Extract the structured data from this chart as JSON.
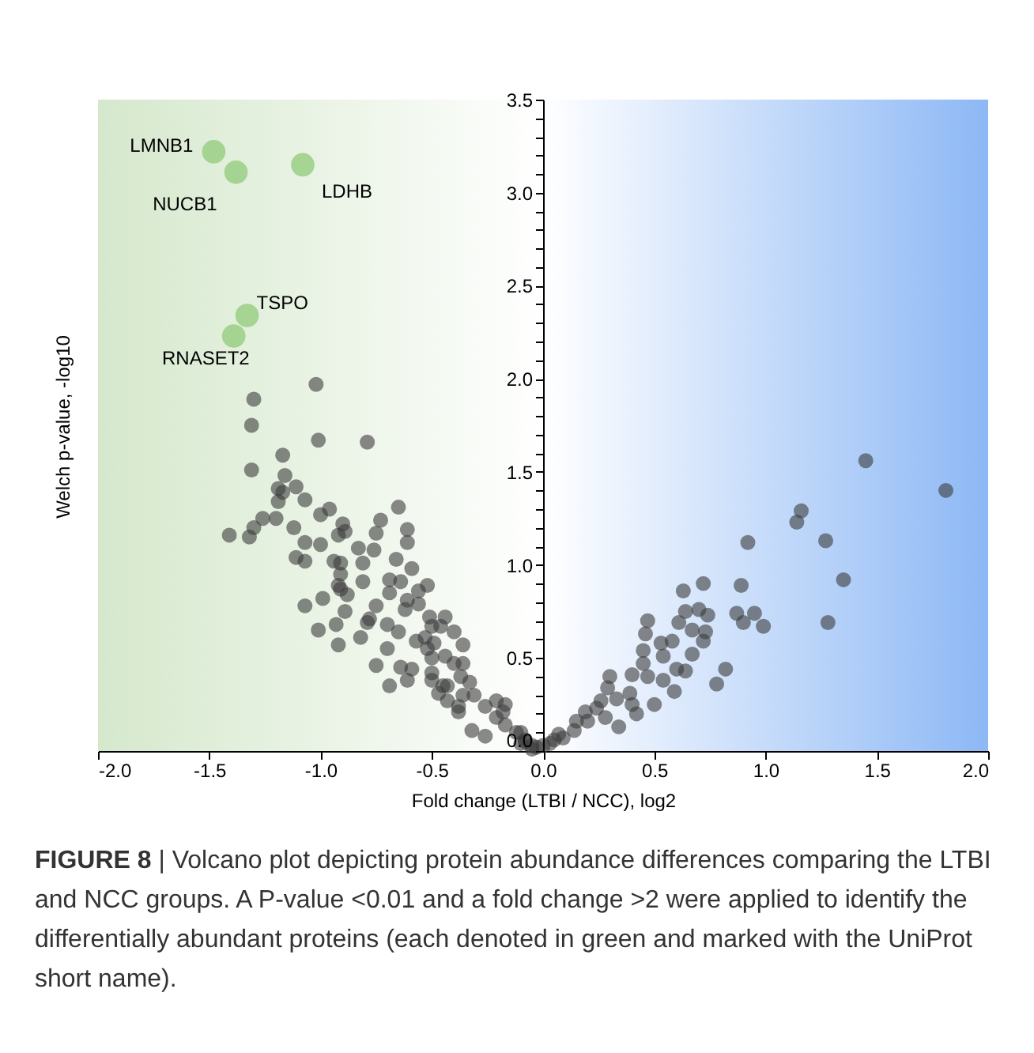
{
  "chart_data": {
    "type": "scatter",
    "xlabel": "Fold change (LTBI / NCC), log2",
    "ylabel": "Welch p-value, -log10",
    "xlim": [
      -2,
      2
    ],
    "ylim": [
      0,
      3.5
    ],
    "xticks": [
      {
        "value": -2,
        "label": "-2.0"
      },
      {
        "value": -1.5,
        "label": "-1.5"
      },
      {
        "value": -1,
        "label": "-1.0"
      },
      {
        "value": -0.5,
        "label": "-0.5"
      },
      {
        "value": 0,
        "label": "0.0"
      },
      {
        "value": 0.5,
        "label": "0.5"
      },
      {
        "value": 1,
        "label": "1.0"
      },
      {
        "value": 1.5,
        "label": "1.5"
      },
      {
        "value": 2,
        "label": "2.0"
      }
    ],
    "yticks": [
      {
        "value": 0,
        "label": "0.0"
      },
      {
        "value": 0.1,
        "label": null
      },
      {
        "value": 0.2,
        "label": null
      },
      {
        "value": 0.3,
        "label": null
      },
      {
        "value": 0.4,
        "label": null
      },
      {
        "value": 0.5,
        "label": "0.5"
      },
      {
        "value": 0.6,
        "label": null
      },
      {
        "value": 0.7,
        "label": null
      },
      {
        "value": 0.8,
        "label": null
      },
      {
        "value": 0.9,
        "label": null
      },
      {
        "value": 1,
        "label": "1.0"
      },
      {
        "value": 1.1,
        "label": null
      },
      {
        "value": 1.2,
        "label": null
      },
      {
        "value": 1.3,
        "label": null
      },
      {
        "value": 1.4,
        "label": null
      },
      {
        "value": 1.5,
        "label": "1.5"
      },
      {
        "value": 1.6,
        "label": null
      },
      {
        "value": 1.7,
        "label": null
      },
      {
        "value": 1.8,
        "label": null
      },
      {
        "value": 1.9,
        "label": null
      },
      {
        "value": 2,
        "label": "2.0"
      },
      {
        "value": 2.1,
        "label": null
      },
      {
        "value": 2.2,
        "label": null
      },
      {
        "value": 2.3,
        "label": null
      },
      {
        "value": 2.4,
        "label": null
      },
      {
        "value": 2.5,
        "label": "2.5"
      },
      {
        "value": 2.6,
        "label": null
      },
      {
        "value": 2.7,
        "label": null
      },
      {
        "value": 2.8,
        "label": null
      },
      {
        "value": 2.9,
        "label": null
      },
      {
        "value": 3,
        "label": "3.0"
      },
      {
        "value": 3.1,
        "label": null
      },
      {
        "value": 3.2,
        "label": null
      },
      {
        "value": 3.3,
        "label": null
      },
      {
        "value": 3.4,
        "label": null
      },
      {
        "value": 3.5,
        "label": "3.5"
      }
    ],
    "grid": false,
    "marker": "circle",
    "bands": [
      {
        "axis": "x",
        "from": -2,
        "to": 0,
        "color": "#d5e8cc"
      },
      {
        "axis": "x",
        "from": 0,
        "to": 2,
        "color": "#8db8f5"
      }
    ],
    "series": [
      {
        "color": "#3c3c3c",
        "x": [
          -1.02,
          -1.3,
          -1.31,
          -1.01,
          -0.79,
          -1.17,
          -1.31,
          -1.16,
          -1.11,
          -1.19,
          -1.17,
          -1.19,
          -1.07,
          -1.26,
          -1.2,
          -1.3,
          -1.41,
          -1.32,
          -1.0,
          -0.96,
          -0.65,
          -0.73,
          -0.9,
          -1.12,
          -0.89,
          -0.75,
          -0.61,
          -0.61,
          -1.07,
          -1.0,
          -0.92,
          -0.83,
          -0.76,
          -1.11,
          -1.07,
          -0.94,
          -0.91,
          -0.81,
          -0.66,
          -0.91,
          -0.59,
          -0.81,
          -0.69,
          -0.64,
          -0.91,
          -0.88,
          -0.69,
          -0.56,
          -0.99,
          -0.75,
          -0.62,
          -1.07,
          -0.89,
          -0.93,
          -1.01,
          -0.79,
          -0.7,
          -0.65,
          -0.57,
          -0.5,
          -0.44,
          -0.92,
          -0.82,
          -0.75,
          -0.69,
          -0.64,
          -0.59,
          -0.61,
          -0.5,
          -0.5,
          -0.47,
          -0.43,
          -0.36,
          -0.36,
          -0.38,
          -0.32,
          -0.52,
          -0.52,
          -0.61,
          -0.56,
          -0.51,
          -0.46,
          -0.4,
          -0.53,
          -0.49,
          -0.36,
          -0.44,
          -0.7,
          -0.5,
          -0.4,
          -0.37,
          -0.45,
          -0.33,
          -0.43,
          -0.38,
          -0.31,
          -0.26,
          -0.21,
          -0.18,
          -0.17,
          -0.12,
          -0.26,
          -0.08,
          -0.05,
          -0.78,
          -0.92,
          -0.21,
          -0.17,
          0.92,
          0.63,
          0.72,
          0.89,
          0.64,
          0.7,
          0.74,
          0.87,
          0.9,
          0.95,
          0.61,
          0.47,
          0.46,
          0.67,
          0.73,
          0.53,
          0.58,
          0.72,
          0.54,
          0.67,
          0.45,
          0.45,
          0.4,
          0.47,
          0.6,
          0.64,
          0.82,
          0.78,
          0.54,
          0.59,
          0.3,
          0.29,
          0.33,
          0.39,
          0.5,
          0.4,
          0.42,
          0.26,
          0.24,
          0.28,
          0.34,
          0.19,
          0.2,
          0.15,
          0.14,
          0.09,
          0.05,
          0.0,
          -0.05,
          -0.1,
          -0.1,
          1.45,
          1.81,
          1.16,
          1.14,
          1.27,
          1.35,
          0.99,
          1.28,
          -0.03,
          0.03,
          -0.08,
          0.07
        ],
        "values": [
          1.97,
          1.89,
          1.75,
          1.67,
          1.66,
          1.59,
          1.51,
          1.48,
          1.42,
          1.41,
          1.39,
          1.34,
          1.35,
          1.25,
          1.25,
          1.2,
          1.16,
          1.15,
          1.27,
          1.3,
          1.31,
          1.24,
          1.22,
          1.2,
          1.18,
          1.17,
          1.19,
          1.12,
          1.12,
          1.11,
          1.16,
          1.09,
          1.08,
          1.04,
          1.02,
          1.02,
          1.01,
          1.01,
          1.03,
          0.95,
          0.98,
          0.91,
          0.92,
          0.91,
          0.87,
          0.84,
          0.85,
          0.86,
          0.82,
          0.78,
          0.76,
          0.78,
          0.75,
          0.68,
          0.65,
          0.69,
          0.68,
          0.64,
          0.59,
          0.67,
          0.72,
          0.57,
          0.61,
          0.46,
          0.35,
          0.45,
          0.44,
          0.38,
          0.5,
          0.38,
          0.31,
          0.35,
          0.47,
          0.3,
          0.21,
          0.11,
          0.55,
          0.89,
          0.81,
          0.79,
          0.72,
          0.67,
          0.64,
          0.61,
          0.58,
          0.57,
          0.51,
          0.55,
          0.42,
          0.47,
          0.4,
          0.35,
          0.37,
          0.27,
          0.24,
          0.3,
          0.24,
          0.18,
          0.21,
          0.14,
          0.1,
          0.08,
          0.06,
          0.03,
          0.71,
          0.89,
          0.27,
          0.25,
          1.12,
          0.86,
          0.9,
          0.89,
          0.75,
          0.76,
          0.73,
          0.74,
          0.69,
          0.74,
          0.69,
          0.7,
          0.63,
          0.65,
          0.64,
          0.58,
          0.59,
          0.59,
          0.51,
          0.52,
          0.54,
          0.47,
          0.41,
          0.4,
          0.44,
          0.43,
          0.44,
          0.36,
          0.38,
          0.32,
          0.4,
          0.34,
          0.28,
          0.31,
          0.25,
          0.25,
          0.2,
          0.27,
          0.23,
          0.18,
          0.13,
          0.21,
          0.16,
          0.16,
          0.11,
          0.07,
          0.06,
          0.03,
          0.01,
          0.1,
          0.04,
          1.56,
          1.4,
          1.29,
          1.23,
          1.13,
          0.92,
          0.67,
          0.69,
          0.02,
          0.04,
          0.05,
          0.09
        ]
      },
      {
        "color": "#9fd08a",
        "x": [
          -1.48,
          -1.38,
          -1.08,
          -1.33,
          -1.39
        ],
        "values": [
          3.22,
          3.11,
          3.15,
          2.34,
          2.23
        ]
      }
    ],
    "annotations": [
      {
        "text": "LMNB1",
        "x": -1.48,
        "y": 3.22
      },
      {
        "text": "NUCB1",
        "x": -1.38,
        "y": 3.11
      },
      {
        "text": "LDHB",
        "x": -1.08,
        "y": 3.15
      },
      {
        "text": "TSPO",
        "x": -1.33,
        "y": 2.34
      },
      {
        "text": "RNASET2",
        "x": -1.39,
        "y": 2.23
      },
      "FIGURE 8 | Volcano plot depicting protein abundance differences comparing the LTBI and NCC groups. A P-value <0.01 and a fold change >2 were applied to identify the differentially abundant proteins (each denoted in green and marked with the UniProt short name)."
    ]
  }
}
